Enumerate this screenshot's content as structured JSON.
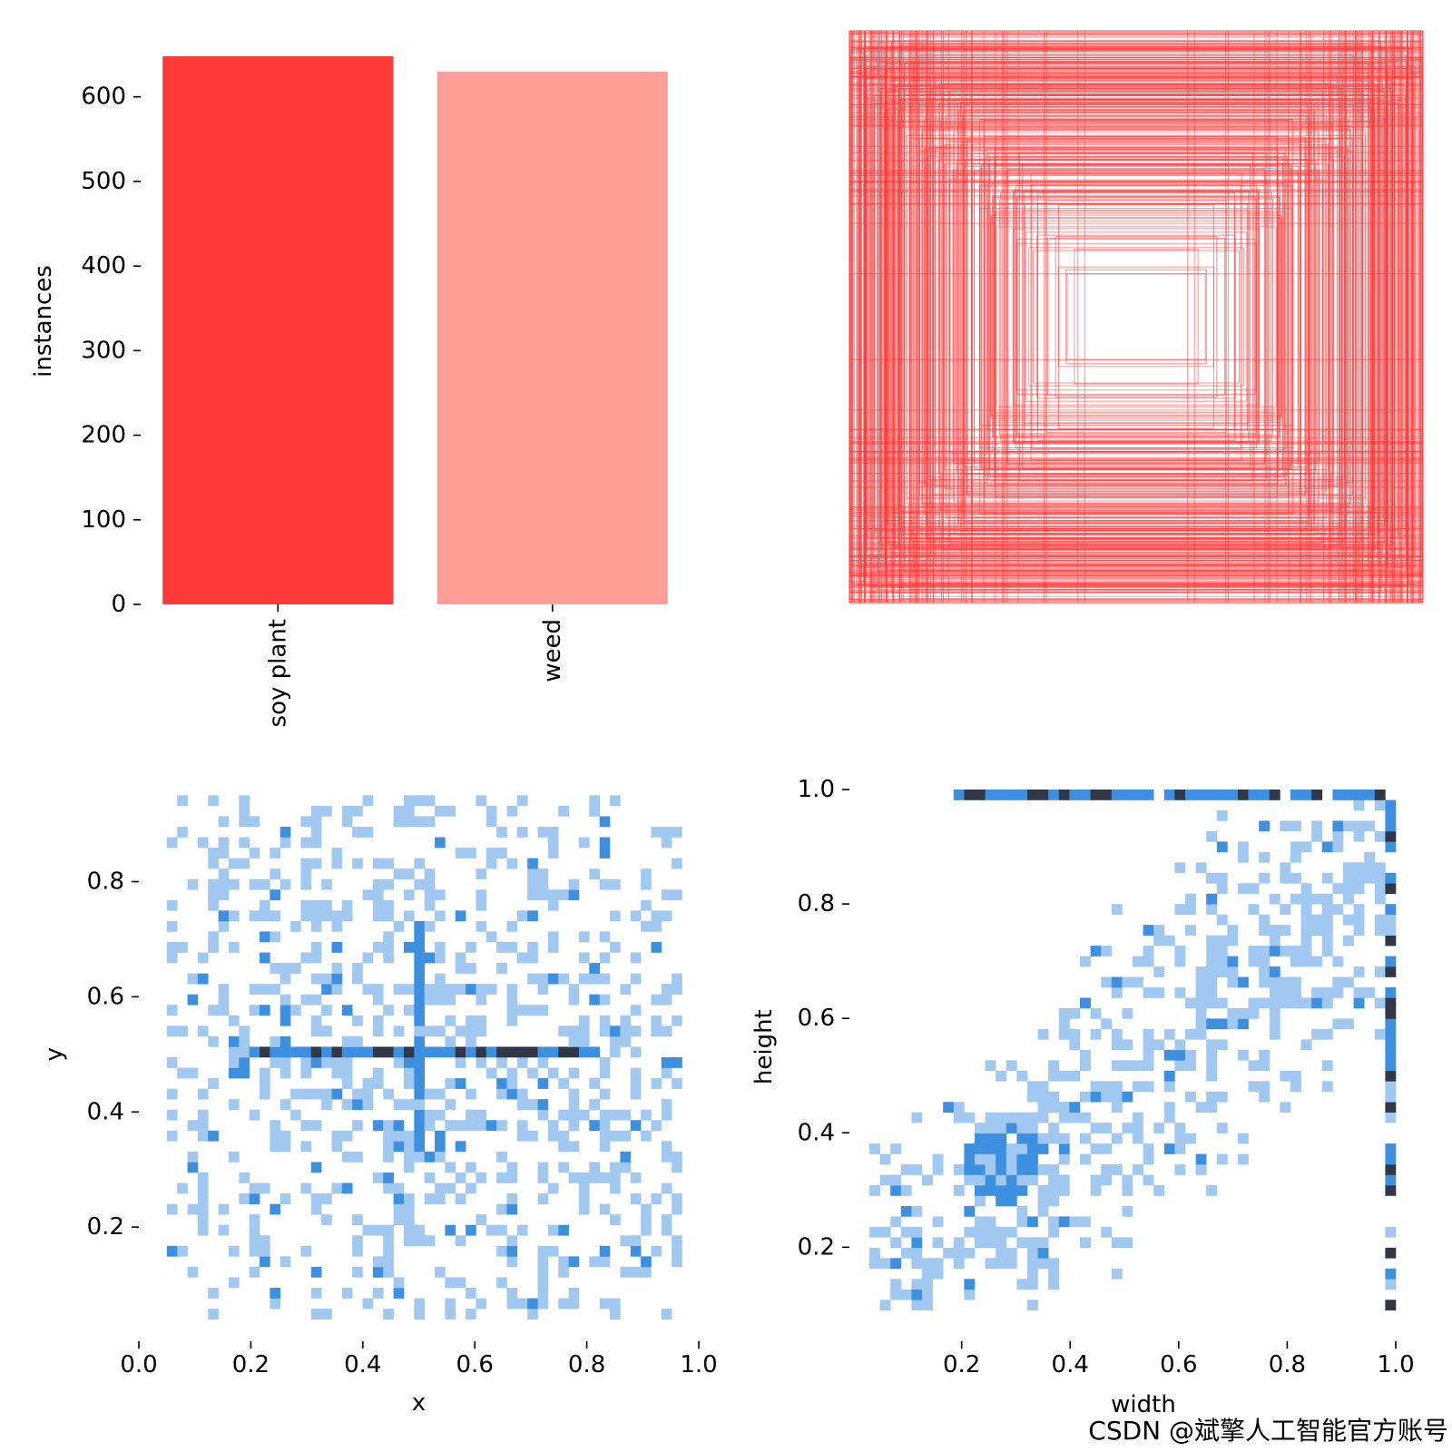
{
  "chart_data": [
    {
      "id": "labels-bar",
      "type": "bar",
      "categories": [
        "soy plant",
        "weed"
      ],
      "values": [
        648,
        630
      ],
      "colors": [
        "#ff3838",
        "#ff9d97"
      ],
      "xlabel": "",
      "ylabel": "instances",
      "ylim": [
        0,
        648
      ],
      "yticks": [
        "0",
        "100",
        "200",
        "300",
        "400",
        "500",
        "600"
      ],
      "grid": false,
      "legend": "none"
    },
    {
      "id": "box-overlay",
      "type": "scatter",
      "description_values": "centered box outlines (width, height) normalized 0-1",
      "color": "#ff3838",
      "xlim": [
        0,
        1
      ],
      "ylim": [
        0,
        1
      ],
      "grid": false,
      "legend": "none"
    },
    {
      "id": "xy-histogram",
      "type": "heatmap",
      "xlabel": "x",
      "ylabel": "y",
      "xlim": [
        0,
        1
      ],
      "ylim": [
        0.03,
        0.96
      ],
      "xticks": [
        "0.0",
        "0.2",
        "0.4",
        "0.6",
        "0.8",
        "1.0"
      ],
      "yticks": [
        "0.2",
        "0.4",
        "0.6",
        "0.8"
      ],
      "peak_row_y": 0.5,
      "peak_col_x": 0.5,
      "colormap": [
        "#ffffff",
        "#a0c8f0",
        "#3d8fe0",
        "#303848"
      ],
      "grid": false,
      "legend": "none"
    },
    {
      "id": "wh-histogram",
      "type": "heatmap",
      "xlabel": "width",
      "ylabel": "height",
      "xlim": [
        0.03,
        1.0
      ],
      "ylim": [
        0.08,
        1.0
      ],
      "xticks": [
        "0.2",
        "0.4",
        "0.6",
        "0.8",
        "1.0"
      ],
      "yticks": [
        "0.2",
        "0.4",
        "0.6",
        "0.8",
        "1.0"
      ],
      "peak_row_height": 1.0,
      "peak_col_width": 1.0,
      "colormap": [
        "#ffffff",
        "#a0c8f0",
        "#3d8fe0",
        "#303848"
      ],
      "grid": false,
      "legend": "none"
    }
  ],
  "watermark": "CSDN @斌擎人工智能官方账号"
}
